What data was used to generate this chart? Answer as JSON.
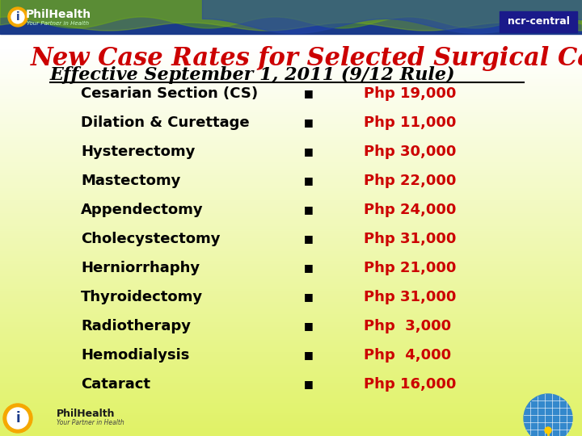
{
  "title": "New Case Rates for Selected Surgical Cases:",
  "subtitle": "Effective September 1, 2011 (9/12 Rule)",
  "title_color": "#cc0000",
  "subtitle_color": "#000000",
  "title_fontsize": 22,
  "subtitle_fontsize": 16,
  "items": [
    {
      "name": "Cesarian Section (CS)",
      "amount": "Php 19,000"
    },
    {
      "name": "Dilation & Curettage",
      "amount": "Php 11,000"
    },
    {
      "name": "Hysterectomy",
      "amount": "Php 30,000"
    },
    {
      "name": "Mastectomy",
      "amount": "Php 22,000"
    },
    {
      "name": "Appendectomy",
      "amount": "Php 24,000"
    },
    {
      "name": "Cholecystectomy",
      "amount": "Php 31,000"
    },
    {
      "name": "Herniorrhaphy",
      "amount": "Php 21,000"
    },
    {
      "name": "Thyroidectomy",
      "amount": "Php 31,000"
    },
    {
      "name": "Radiotherapy",
      "amount": "Php  3,000"
    },
    {
      "name": "Hemodialysis",
      "amount": "Php  4,000"
    },
    {
      "name": "Cataract",
      "amount": "Php 16,000"
    }
  ],
  "item_name_color": "#000000",
  "item_amount_color": "#cc0000",
  "item_fontsize": 13,
  "bullet": "■",
  "bullet_color": "#000000",
  "ncr_central_text": "ncr-central",
  "wave_color_green1": "#5a9a20",
  "wave_color_green2": "#88bb10",
  "wave_color_blue": "#2244aa",
  "header_bar_color": "#1a3a8a",
  "ncr_box_color": "#1a1a8a"
}
